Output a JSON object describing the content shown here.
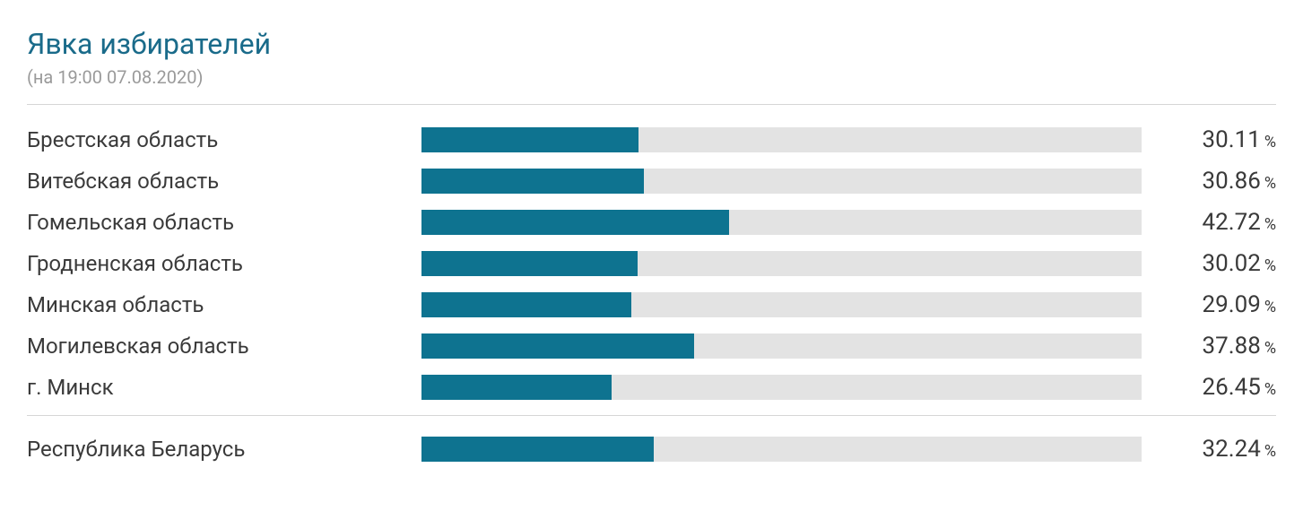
{
  "title": {
    "text": "Явка избирателей",
    "color": "#1a6b8a",
    "fontsize": 32
  },
  "subtitle": {
    "text": "(на 19:00 07.08.2020)",
    "color": "#9a9a9a",
    "fontsize": 20
  },
  "divider_color": "#d6d6d6",
  "label_color": "#3a3a3a",
  "value_color": "#3a3a3a",
  "bar": {
    "fill_color": "#0e7390",
    "track_color": "#e3e3e3",
    "height": 28,
    "max_value": 100
  },
  "rows": [
    {
      "label": "Брестская область",
      "value": 30.11
    },
    {
      "label": "Витебская область",
      "value": 30.86
    },
    {
      "label": "Гомельская область",
      "value": 42.72
    },
    {
      "label": "Гродненская область",
      "value": 30.02
    },
    {
      "label": "Минская область",
      "value": 29.09
    },
    {
      "label": "Могилевская область",
      "value": 37.88
    },
    {
      "label": "г. Минск",
      "value": 26.45
    }
  ],
  "total": {
    "label": "Республика Беларусь",
    "value": 32.24
  },
  "percent_symbol": "%"
}
